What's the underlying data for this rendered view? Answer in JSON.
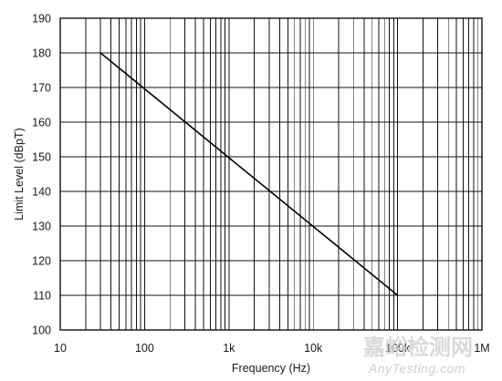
{
  "chart_data": {
    "type": "line",
    "title": "",
    "xlabel": "Frequency (Hz)",
    "ylabel": "Limit Level (dBpT)",
    "x_scale": "log",
    "xlim": [
      10,
      1000000
    ],
    "ylim": [
      100,
      190
    ],
    "x_ticks": [
      10,
      100,
      1000,
      10000,
      100000,
      1000000
    ],
    "x_tick_labels": [
      "10",
      "100",
      "1k",
      "10k",
      "100k",
      "1M"
    ],
    "y_ticks": [
      100,
      110,
      120,
      130,
      140,
      150,
      160,
      170,
      180,
      190
    ],
    "grid": true,
    "legend": "none",
    "series": [
      {
        "x": [
          30,
          100000
        ],
        "y": [
          180,
          110
        ],
        "color": "#000000"
      }
    ],
    "grid_color": "#111111"
  },
  "watermark": {
    "cjk": "嘉峪检测网",
    "latin": "AnyTesting.com"
  }
}
